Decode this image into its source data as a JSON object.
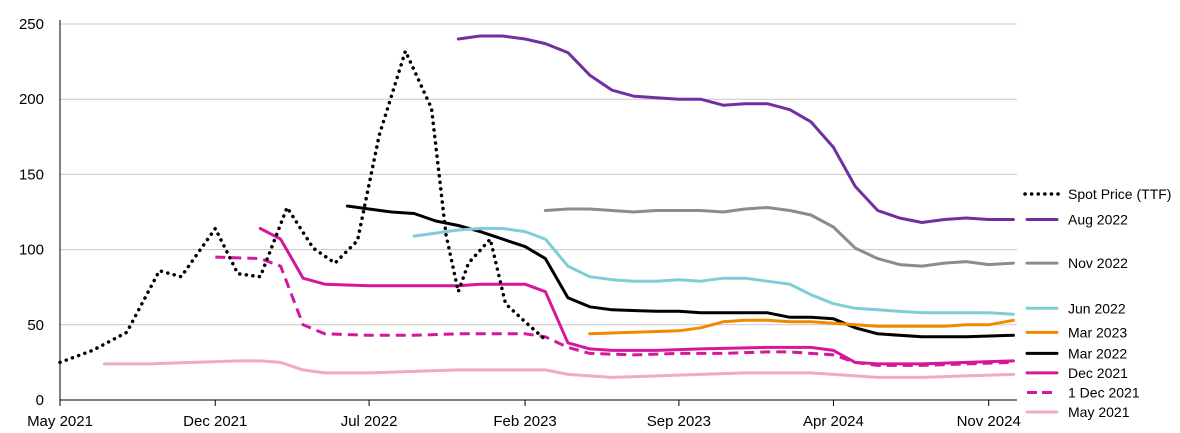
{
  "chart_data": {
    "type": "line",
    "title": "",
    "xlabel": "",
    "ylabel": "",
    "ylim": [
      0,
      250
    ],
    "xlim": [
      "2021-05-01",
      "2024-12-10"
    ],
    "grid": "horizontal",
    "legend_placement": "right",
    "y_ticks": [
      "0",
      "50",
      "100",
      "150",
      "200",
      "250"
    ],
    "x_ticks": [
      {
        "label": "May 2021",
        "date": "2021-05-01"
      },
      {
        "label": "Dec 2021",
        "date": "2021-12-01"
      },
      {
        "label": "Jul 2022",
        "date": "2022-07-01"
      },
      {
        "label": "Feb 2023",
        "date": "2023-02-01"
      },
      {
        "label": "Sep 2023",
        "date": "2023-09-01"
      },
      {
        "label": "Apr 2024",
        "date": "2024-04-01"
      },
      {
        "label": "Nov 2024",
        "date": "2024-11-01"
      }
    ],
    "series": [
      {
        "name": "Spot Price (TTF)",
        "color": "#000000",
        "style": "dotted",
        "legend_label_y": 137,
        "points": [
          [
            "2021-05-01",
            25
          ],
          [
            "2021-06-15",
            33
          ],
          [
            "2021-08-01",
            45
          ],
          [
            "2021-09-15",
            86
          ],
          [
            "2021-10-15",
            82
          ],
          [
            "2021-12-01",
            114
          ],
          [
            "2022-01-01",
            84
          ],
          [
            "2022-02-01",
            82
          ],
          [
            "2022-03-10",
            128
          ],
          [
            "2022-04-15",
            101
          ],
          [
            "2022-05-15",
            91
          ],
          [
            "2022-06-15",
            106
          ],
          [
            "2022-07-15",
            176
          ],
          [
            "2022-08-20",
            232
          ],
          [
            "2022-09-25",
            194
          ],
          [
            "2022-10-15",
            110
          ],
          [
            "2022-11-01",
            72
          ],
          [
            "2022-11-15",
            91
          ],
          [
            "2022-12-15",
            107
          ],
          [
            "2023-01-05",
            64
          ],
          [
            "2023-02-01",
            52
          ],
          [
            "2023-03-01",
            40
          ]
        ]
      },
      {
        "name": "Aug 2022",
        "color": "#7030a0",
        "style": "solid",
        "legend_label_y": 120,
        "points": [
          [
            "2022-11-01",
            240
          ],
          [
            "2022-12-01",
            242
          ],
          [
            "2023-01-01",
            242
          ],
          [
            "2023-02-01",
            240
          ],
          [
            "2023-03-01",
            237
          ],
          [
            "2023-04-01",
            231
          ],
          [
            "2023-05-01",
            216
          ],
          [
            "2023-06-01",
            206
          ],
          [
            "2023-07-01",
            202
          ],
          [
            "2023-08-01",
            201
          ],
          [
            "2023-09-01",
            200
          ],
          [
            "2023-10-01",
            200
          ],
          [
            "2023-11-01",
            196
          ],
          [
            "2023-12-01",
            197
          ],
          [
            "2024-01-01",
            197
          ],
          [
            "2024-02-01",
            193
          ],
          [
            "2024-03-01",
            185
          ],
          [
            "2024-04-01",
            168
          ],
          [
            "2024-05-01",
            142
          ],
          [
            "2024-06-01",
            126
          ],
          [
            "2024-07-01",
            121
          ],
          [
            "2024-08-01",
            118
          ],
          [
            "2024-09-01",
            120
          ],
          [
            "2024-10-01",
            121
          ],
          [
            "2024-11-01",
            120
          ],
          [
            "2024-12-05",
            120
          ]
        ]
      },
      {
        "name": "Nov 2022",
        "color": "#8c8c8c",
        "style": "solid",
        "legend_label_y": 91,
        "points": [
          [
            "2023-03-01",
            126
          ],
          [
            "2023-04-01",
            127
          ],
          [
            "2023-05-01",
            127
          ],
          [
            "2023-06-01",
            126
          ],
          [
            "2023-07-01",
            125
          ],
          [
            "2023-08-01",
            126
          ],
          [
            "2023-09-01",
            126
          ],
          [
            "2023-10-01",
            126
          ],
          [
            "2023-11-01",
            125
          ],
          [
            "2023-12-01",
            127
          ],
          [
            "2024-01-01",
            128
          ],
          [
            "2024-02-01",
            126
          ],
          [
            "2024-03-01",
            123
          ],
          [
            "2024-04-01",
            115
          ],
          [
            "2024-05-01",
            101
          ],
          [
            "2024-06-01",
            94
          ],
          [
            "2024-07-01",
            90
          ],
          [
            "2024-08-01",
            89
          ],
          [
            "2024-09-01",
            91
          ],
          [
            "2024-10-01",
            92
          ],
          [
            "2024-11-01",
            90
          ],
          [
            "2024-12-05",
            91
          ]
        ]
      },
      {
        "name": "Jun 2022",
        "color": "#7fcdd8",
        "style": "solid",
        "legend_label_y": 61,
        "points": [
          [
            "2022-09-01",
            109
          ],
          [
            "2022-10-01",
            111
          ],
          [
            "2022-11-01",
            113
          ],
          [
            "2022-12-01",
            114
          ],
          [
            "2023-01-01",
            114
          ],
          [
            "2023-02-01",
            112
          ],
          [
            "2023-03-01",
            107
          ],
          [
            "2023-04-01",
            89
          ],
          [
            "2023-05-01",
            82
          ],
          [
            "2023-06-01",
            80
          ],
          [
            "2023-07-01",
            79
          ],
          [
            "2023-08-01",
            79
          ],
          [
            "2023-09-01",
            80
          ],
          [
            "2023-10-01",
            79
          ],
          [
            "2023-11-01",
            81
          ],
          [
            "2023-12-01",
            81
          ],
          [
            "2024-01-01",
            79
          ],
          [
            "2024-02-01",
            77
          ],
          [
            "2024-03-01",
            70
          ],
          [
            "2024-04-01",
            64
          ],
          [
            "2024-05-01",
            61
          ],
          [
            "2024-06-01",
            60
          ],
          [
            "2024-07-01",
            59
          ],
          [
            "2024-08-01",
            58
          ],
          [
            "2024-09-01",
            58
          ],
          [
            "2024-10-01",
            58
          ],
          [
            "2024-11-01",
            58
          ],
          [
            "2024-12-05",
            57
          ]
        ]
      },
      {
        "name": "Mar 2023",
        "color": "#f08a00",
        "style": "solid",
        "legend_label_y": 45,
        "points": [
          [
            "2023-05-01",
            44
          ],
          [
            "2023-07-01",
            45
          ],
          [
            "2023-09-01",
            46
          ],
          [
            "2023-10-01",
            48
          ],
          [
            "2023-11-01",
            52
          ],
          [
            "2023-12-01",
            53
          ],
          [
            "2024-01-01",
            53
          ],
          [
            "2024-02-01",
            52
          ],
          [
            "2024-03-01",
            52
          ],
          [
            "2024-04-01",
            51
          ],
          [
            "2024-05-01",
            50
          ],
          [
            "2024-06-01",
            49
          ],
          [
            "2024-07-01",
            49
          ],
          [
            "2024-08-01",
            49
          ],
          [
            "2024-09-01",
            49
          ],
          [
            "2024-10-01",
            50
          ],
          [
            "2024-11-01",
            50
          ],
          [
            "2024-12-05",
            53
          ]
        ]
      },
      {
        "name": "Mar 2022",
        "color": "#000000",
        "style": "solid",
        "legend_label_y": 31,
        "points": [
          [
            "2022-06-01",
            129
          ],
          [
            "2022-07-01",
            127
          ],
          [
            "2022-08-01",
            125
          ],
          [
            "2022-09-01",
            124
          ],
          [
            "2022-10-01",
            119
          ],
          [
            "2022-11-01",
            116
          ],
          [
            "2022-12-01",
            112
          ],
          [
            "2023-01-01",
            107
          ],
          [
            "2023-02-01",
            102
          ],
          [
            "2023-03-01",
            94
          ],
          [
            "2023-04-01",
            68
          ],
          [
            "2023-05-01",
            62
          ],
          [
            "2023-06-01",
            60
          ],
          [
            "2023-08-01",
            59
          ],
          [
            "2023-09-01",
            59
          ],
          [
            "2023-10-01",
            58
          ],
          [
            "2023-12-01",
            58
          ],
          [
            "2024-01-01",
            58
          ],
          [
            "2024-02-01",
            55
          ],
          [
            "2024-03-01",
            55
          ],
          [
            "2024-04-01",
            54
          ],
          [
            "2024-05-01",
            48
          ],
          [
            "2024-06-01",
            44
          ],
          [
            "2024-08-01",
            42
          ],
          [
            "2024-10-01",
            42
          ],
          [
            "2024-12-05",
            43
          ]
        ]
      },
      {
        "name": "Dec 2021",
        "color": "#d4189b",
        "style": "solid",
        "legend_label_y": 18,
        "points": [
          [
            "2022-02-01",
            114
          ],
          [
            "2022-03-01",
            107
          ],
          [
            "2022-04-01",
            81
          ],
          [
            "2022-05-01",
            77
          ],
          [
            "2022-07-01",
            76
          ],
          [
            "2022-09-01",
            76
          ],
          [
            "2022-11-01",
            76
          ],
          [
            "2022-12-01",
            77
          ],
          [
            "2023-01-01",
            77
          ],
          [
            "2023-02-01",
            77
          ],
          [
            "2023-03-01",
            72
          ],
          [
            "2023-04-01",
            38
          ],
          [
            "2023-05-01",
            34
          ],
          [
            "2023-06-01",
            33
          ],
          [
            "2023-08-01",
            33
          ],
          [
            "2023-10-01",
            34
          ],
          [
            "2024-01-01",
            35
          ],
          [
            "2024-03-01",
            35
          ],
          [
            "2024-04-01",
            33
          ],
          [
            "2024-05-01",
            25
          ],
          [
            "2024-06-01",
            24
          ],
          [
            "2024-08-01",
            24
          ],
          [
            "2024-10-01",
            25
          ],
          [
            "2024-12-05",
            26
          ]
        ]
      },
      {
        "name": "1 Dec 2021",
        "color": "#d4189b",
        "style": "dashed",
        "legend_label_y": 5,
        "points": [
          [
            "2021-12-01",
            95
          ],
          [
            "2022-02-01",
            94
          ],
          [
            "2022-03-01",
            89
          ],
          [
            "2022-04-01",
            50
          ],
          [
            "2022-05-01",
            44
          ],
          [
            "2022-07-01",
            43
          ],
          [
            "2022-09-01",
            43
          ],
          [
            "2022-11-01",
            44
          ],
          [
            "2023-01-01",
            44
          ],
          [
            "2023-02-01",
            44
          ],
          [
            "2023-03-01",
            42
          ],
          [
            "2023-04-01",
            35
          ],
          [
            "2023-05-01",
            31
          ],
          [
            "2023-07-01",
            30
          ],
          [
            "2023-09-01",
            31
          ],
          [
            "2023-11-01",
            31
          ],
          [
            "2024-01-01",
            32
          ],
          [
            "2024-02-01",
            32
          ],
          [
            "2024-03-01",
            31
          ],
          [
            "2024-04-01",
            30
          ],
          [
            "2024-05-01",
            25
          ],
          [
            "2024-06-01",
            23
          ],
          [
            "2024-08-01",
            23
          ],
          [
            "2024-10-01",
            24
          ],
          [
            "2024-12-05",
            25
          ]
        ]
      },
      {
        "name": "May 2021",
        "color": "#f2a9c9",
        "style": "solid",
        "legend_label_y": -8,
        "points": [
          [
            "2021-07-01",
            24
          ],
          [
            "2021-09-01",
            24
          ],
          [
            "2021-11-01",
            25
          ],
          [
            "2022-01-01",
            26
          ],
          [
            "2022-02-01",
            26
          ],
          [
            "2022-03-01",
            25
          ],
          [
            "2022-04-01",
            20
          ],
          [
            "2022-05-01",
            18
          ],
          [
            "2022-07-01",
            18
          ],
          [
            "2022-09-01",
            19
          ],
          [
            "2022-11-01",
            20
          ],
          [
            "2023-01-01",
            20
          ],
          [
            "2023-03-01",
            20
          ],
          [
            "2023-04-01",
            17
          ],
          [
            "2023-06-01",
            15
          ],
          [
            "2023-08-01",
            16
          ],
          [
            "2023-10-01",
            17
          ],
          [
            "2023-12-01",
            18
          ],
          [
            "2024-02-01",
            18
          ],
          [
            "2024-03-01",
            18
          ],
          [
            "2024-04-01",
            17
          ],
          [
            "2024-05-01",
            16
          ],
          [
            "2024-06-01",
            15
          ],
          [
            "2024-08-01",
            15
          ],
          [
            "2024-10-01",
            16
          ],
          [
            "2024-12-05",
            17
          ]
        ]
      }
    ]
  }
}
